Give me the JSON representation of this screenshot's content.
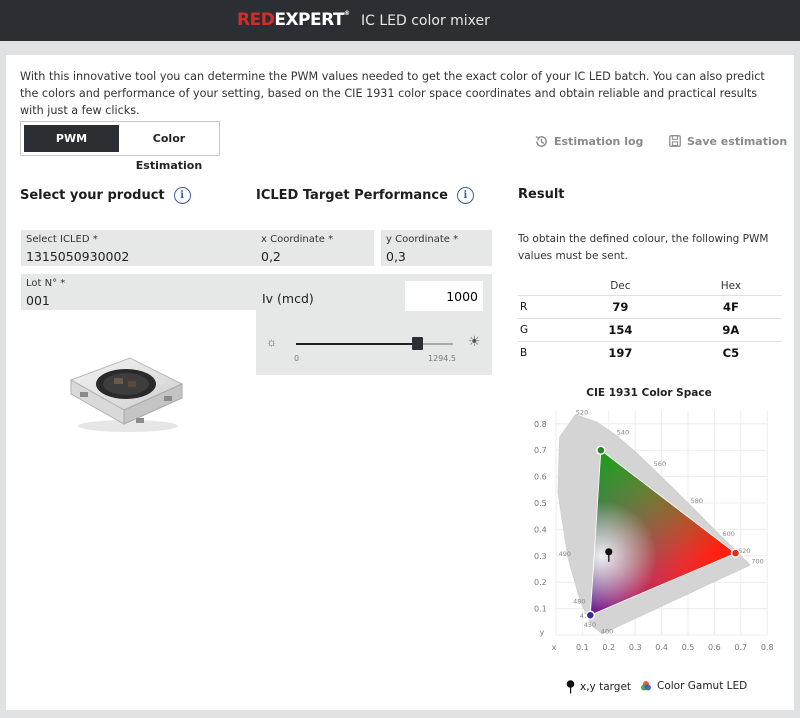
{
  "header": {
    "brand_red": "RED",
    "brand_white": "EXPERT",
    "brand_mark": "®",
    "app_title": "IC LED color mixer"
  },
  "intro": "With this innovative tool you can determine the PWM values needed to get the exact color of your IC LED batch. You can also predict the colors and performance of your setting, based on the CIE 1931 color space coordinates and obtain reliable and practical results with just a few clicks.",
  "tabs": [
    {
      "label": "PWM Estimation",
      "active": true
    },
    {
      "label": "Color Estimation",
      "active": false
    }
  ],
  "toolbar": {
    "log_label": "Estimation log",
    "log_icon": "history-icon",
    "save_label": "Save estimation",
    "save_icon": "save-icon"
  },
  "product": {
    "title": "Select your product",
    "icled_label": "Select ICLED *",
    "icled_value": "1315050930002",
    "lot_label": "Lot N° *",
    "lot_value": "001"
  },
  "target": {
    "title": "ICLED Target Performance",
    "x_label": "x Coordinate *",
    "x_value": "0,2",
    "y_label": "y Coordinate *",
    "y_value": "0,3",
    "iv_label": "Iv (mcd)",
    "iv_value": "1000",
    "slider_min": "0",
    "slider_max": "1294.5",
    "slider_fraction": 0.773
  },
  "result": {
    "title": "Result",
    "text": "To obtain the defined colour, the following PWM values must be sent.",
    "col_dec": "Dec",
    "col_hex": "Hex",
    "rows": [
      {
        "ch": "R",
        "dec": "79",
        "hex": "4F"
      },
      {
        "ch": "G",
        "dec": "154",
        "hex": "9A"
      },
      {
        "ch": "B",
        "dec": "197",
        "hex": "C5"
      }
    ]
  },
  "chart_data": {
    "type": "scatter",
    "title": "CIE 1931 Color Space",
    "xlabel": "x",
    "ylabel": "y",
    "xlim": [
      0,
      0.8
    ],
    "ylim": [
      0,
      0.85
    ],
    "x_ticks": [
      "0.1",
      "0.2",
      "0.3",
      "0.4",
      "0.5",
      "0.6",
      "0.7",
      "0.8"
    ],
    "y_ticks": [
      "0.1",
      "0.2",
      "0.3",
      "0.4",
      "0.5",
      "0.6",
      "0.7",
      "0.8"
    ],
    "wavelength_labels": [
      {
        "label": "400",
        "x": 0.17,
        "y": 0.005
      },
      {
        "label": "450",
        "x": 0.105,
        "y": 0.03
      },
      {
        "label": "470",
        "x": 0.09,
        "y": 0.065
      },
      {
        "label": "480",
        "x": 0.065,
        "y": 0.12
      },
      {
        "label": "490",
        "x": 0.01,
        "y": 0.3
      },
      {
        "label": "520",
        "x": 0.075,
        "y": 0.835
      },
      {
        "label": "540",
        "x": 0.23,
        "y": 0.76
      },
      {
        "label": "560",
        "x": 0.37,
        "y": 0.64
      },
      {
        "label": "580",
        "x": 0.51,
        "y": 0.5
      },
      {
        "label": "600",
        "x": 0.63,
        "y": 0.375
      },
      {
        "label": "620",
        "x": 0.69,
        "y": 0.31
      },
      {
        "label": "700",
        "x": 0.74,
        "y": 0.27
      }
    ],
    "gamut": [
      {
        "name": "green",
        "x": 0.17,
        "y": 0.7,
        "color": "#1f8a1f"
      },
      {
        "name": "red",
        "x": 0.68,
        "y": 0.31,
        "color": "#e02a1e"
      },
      {
        "name": "blue",
        "x": 0.13,
        "y": 0.075,
        "color": "#3a2a9a"
      }
    ],
    "target": {
      "x": 0.2,
      "y": 0.3
    },
    "legend": [
      {
        "label": "x,y target",
        "icon": "map-pin-icon"
      },
      {
        "label": "Color Gamut LED",
        "icon": "color-wheel-icon"
      }
    ]
  }
}
